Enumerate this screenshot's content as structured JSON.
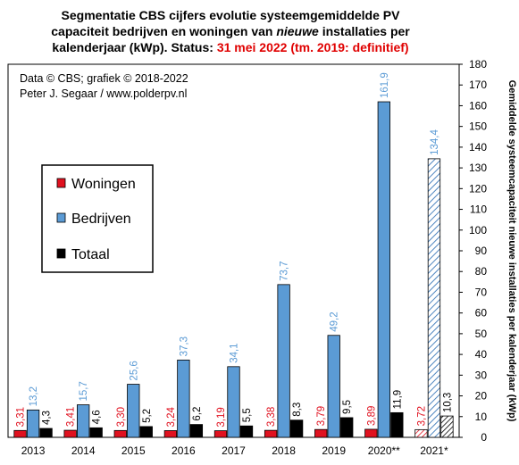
{
  "title": {
    "line1": "Segmentatie  CBS cijfers evolutie systeemgemiddelde  PV",
    "line2": "capaciteit  bedrijven en woningen van",
    "line2_italic": "nieuwe",
    "line2_tail": "installaties  per",
    "line3": "kalenderjaar  (kWp). Status:",
    "line3_red": "31 mei 2022 (tm. 2019: definitief)"
  },
  "credits": {
    "line1": "Data © CBS;  grafiek © 2018-2022",
    "line2": "Peter J. Segaar / www.polderpv.nl"
  },
  "colors": {
    "woningen": "#e0111f",
    "bedrijven": "#5b9bd5",
    "totaal": "#000000",
    "label_woningen": "#e0111f",
    "label_bedrijven": "#5b9bd5",
    "label_totaal": "#000000"
  },
  "chart_data": {
    "type": "bar",
    "categories": [
      "2013",
      "2014",
      "2015",
      "2016",
      "2017",
      "2018",
      "2019",
      "2020**",
      "2021*"
    ],
    "series": [
      {
        "name": "Woningen",
        "values": [
          3.31,
          3.41,
          3.3,
          3.24,
          3.19,
          3.38,
          3.79,
          3.89,
          3.72
        ],
        "labels": [
          "3,31",
          "3,41",
          "3,30",
          "3,24",
          "3,19",
          "3,38",
          "3,79",
          "3,89",
          "3,72"
        ]
      },
      {
        "name": "Bedrijven",
        "values": [
          13.2,
          15.7,
          25.6,
          37.3,
          34.1,
          73.7,
          49.2,
          161.9,
          134.4
        ],
        "labels": [
          "13,2",
          "15,7",
          "25,6",
          "37,3",
          "34,1",
          "73,7",
          "49,2",
          "161,9",
          "134,4"
        ]
      },
      {
        "name": "Totaal",
        "values": [
          4.3,
          4.6,
          5.2,
          6.2,
          5.5,
          8.3,
          9.5,
          11.9,
          10.3
        ],
        "labels": [
          "4,3",
          "4,6",
          "5,2",
          "6,2",
          "5,5",
          "8,3",
          "9,5",
          "11,9",
          "10,3"
        ]
      }
    ],
    "hatched_category": "2021*",
    "ylabel": "Gemiddelde systeemcapaciteit nieuwe installaties per kalenderjaar (kWp)",
    "ylim": [
      0,
      180
    ],
    "yticks": [
      0,
      10,
      20,
      30,
      40,
      50,
      60,
      70,
      80,
      90,
      100,
      110,
      120,
      130,
      140,
      150,
      160,
      170,
      180
    ],
    "y_axis_side": "right",
    "grid": false,
    "legend_position": "left-middle"
  }
}
